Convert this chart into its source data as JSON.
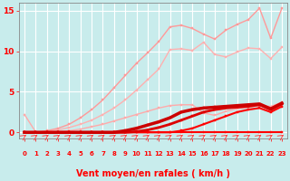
{
  "xlabel": "Vent moyen/en rafales ( km/h )",
  "background_color": "#c8ecec",
  "grid_color": "#ffffff",
  "xlim": [
    -0.5,
    23.5
  ],
  "ylim": [
    -0.8,
    16
  ],
  "yticks": [
    0,
    5,
    10,
    15
  ],
  "xticks": [
    0,
    1,
    2,
    3,
    4,
    5,
    6,
    7,
    8,
    9,
    10,
    11,
    12,
    13,
    14,
    15,
    16,
    17,
    18,
    19,
    20,
    21,
    22,
    23
  ],
  "series": [
    {
      "x": [
        0,
        1,
        2,
        3,
        4,
        5,
        6,
        7,
        8,
        9,
        10,
        11,
        12,
        13,
        14,
        15,
        16,
        17,
        18,
        19,
        20,
        21,
        22,
        23
      ],
      "y": [
        0,
        0,
        0,
        0,
        0,
        0,
        0,
        0,
        0,
        0,
        0,
        0,
        0,
        0,
        0,
        0,
        0,
        0,
        0,
        0,
        0,
        0,
        0,
        0
      ],
      "color": "#ff0000",
      "linewidth": 1.5,
      "marker": "s",
      "markersize": 1.5,
      "alpha": 1.0,
      "zorder": 5
    },
    {
      "x": [
        0,
        1,
        2,
        3,
        4,
        5,
        6,
        7,
        8,
        9,
        10,
        11,
        12,
        13,
        14,
        15,
        16,
        17,
        18,
        19,
        20,
        21,
        22,
        23
      ],
      "y": [
        0,
        0,
        0,
        0,
        0,
        0,
        0,
        0,
        0,
        0,
        0,
        0,
        0,
        0,
        0.2,
        0.5,
        1.0,
        1.5,
        2.0,
        2.5,
        2.8,
        3.0,
        2.5,
        3.2
      ],
      "color": "#ff0000",
      "linewidth": 1.5,
      "marker": "s",
      "markersize": 1.5,
      "alpha": 1.0,
      "zorder": 5
    },
    {
      "x": [
        0,
        1,
        2,
        3,
        4,
        5,
        6,
        7,
        8,
        9,
        10,
        11,
        12,
        13,
        14,
        15,
        16,
        17,
        18,
        19,
        20,
        21,
        22,
        23
      ],
      "y": [
        0,
        0,
        0,
        0,
        0,
        0,
        0,
        0,
        0,
        0,
        0.1,
        0.3,
        0.6,
        1.0,
        1.5,
        2.0,
        2.5,
        2.8,
        3.0,
        3.1,
        3.2,
        3.4,
        2.8,
        3.5
      ],
      "color": "#dd0000",
      "linewidth": 2.0,
      "marker": "s",
      "markersize": 1.5,
      "alpha": 1.0,
      "zorder": 5
    },
    {
      "x": [
        0,
        1,
        2,
        3,
        4,
        5,
        6,
        7,
        8,
        9,
        10,
        11,
        12,
        13,
        14,
        15,
        16,
        17,
        18,
        19,
        20,
        21,
        22,
        23
      ],
      "y": [
        0,
        0,
        0,
        0,
        0,
        0,
        0,
        0,
        0,
        0.2,
        0.5,
        0.9,
        1.3,
        1.8,
        2.5,
        2.8,
        3.0,
        3.1,
        3.2,
        3.3,
        3.4,
        3.5,
        2.9,
        3.6
      ],
      "color": "#cc0000",
      "linewidth": 2.5,
      "marker": "s",
      "markersize": 1.5,
      "alpha": 1.0,
      "zorder": 5
    },
    {
      "x": [
        0,
        1,
        2,
        3,
        4,
        5,
        6,
        7,
        8,
        9,
        10,
        11,
        12,
        13,
        14,
        15,
        16,
        17,
        18,
        19,
        20,
        21,
        22,
        23
      ],
      "y": [
        2.2,
        0.05,
        0.05,
        0.1,
        0.2,
        0.4,
        0.7,
        1.0,
        1.4,
        1.8,
        2.2,
        2.6,
        3.0,
        3.3,
        3.4,
        3.4,
        2.4,
        2.1,
        2.6,
        2.9,
        3.1,
        3.3,
        3.2,
        3.7
      ],
      "color": "#ffaaaa",
      "linewidth": 1.0,
      "marker": "s",
      "markersize": 1.5,
      "alpha": 1.0,
      "zorder": 3
    },
    {
      "x": [
        0,
        1,
        2,
        3,
        4,
        5,
        6,
        7,
        8,
        9,
        10,
        11,
        12,
        13,
        14,
        15,
        16,
        17,
        18,
        19,
        20,
        21,
        22,
        23
      ],
      "y": [
        0,
        0,
        0.1,
        0.3,
        0.6,
        1.0,
        1.5,
        2.2,
        3.0,
        4.0,
        5.2,
        6.5,
        7.8,
        10.2,
        10.3,
        10.1,
        11.1,
        9.6,
        9.3,
        9.9,
        10.4,
        10.3,
        9.1,
        10.5
      ],
      "color": "#ffb0b0",
      "linewidth": 1.0,
      "marker": "s",
      "markersize": 1.5,
      "alpha": 1.0,
      "zorder": 3
    },
    {
      "x": [
        0,
        1,
        2,
        3,
        4,
        5,
        6,
        7,
        8,
        9,
        10,
        11,
        12,
        13,
        14,
        15,
        16,
        17,
        18,
        19,
        20,
        21,
        22,
        23
      ],
      "y": [
        0,
        0,
        0.2,
        0.5,
        1.0,
        1.8,
        2.8,
        4.0,
        5.5,
        7.0,
        8.5,
        9.8,
        11.2,
        13.0,
        13.2,
        12.8,
        12.1,
        11.5,
        12.6,
        13.3,
        13.9,
        15.3,
        11.6,
        15.3
      ],
      "color": "#ff9999",
      "linewidth": 1.0,
      "marker": "s",
      "markersize": 1.5,
      "alpha": 1.0,
      "zorder": 3
    }
  ],
  "wind_symbols": [
    0,
    1,
    2,
    3,
    4,
    5,
    6,
    7,
    8,
    9,
    10,
    11,
    12,
    13,
    14,
    15,
    16,
    17,
    18,
    19,
    20,
    21,
    22,
    23
  ],
  "wind_symbol_color": "#ff4444",
  "wind_symbol_y": -0.5,
  "xlabel_color": "#ff0000",
  "xlabel_fontsize": 7,
  "tick_color": "#ff0000",
  "tick_fontsize": 5,
  "ytick_fontsize": 6.5
}
